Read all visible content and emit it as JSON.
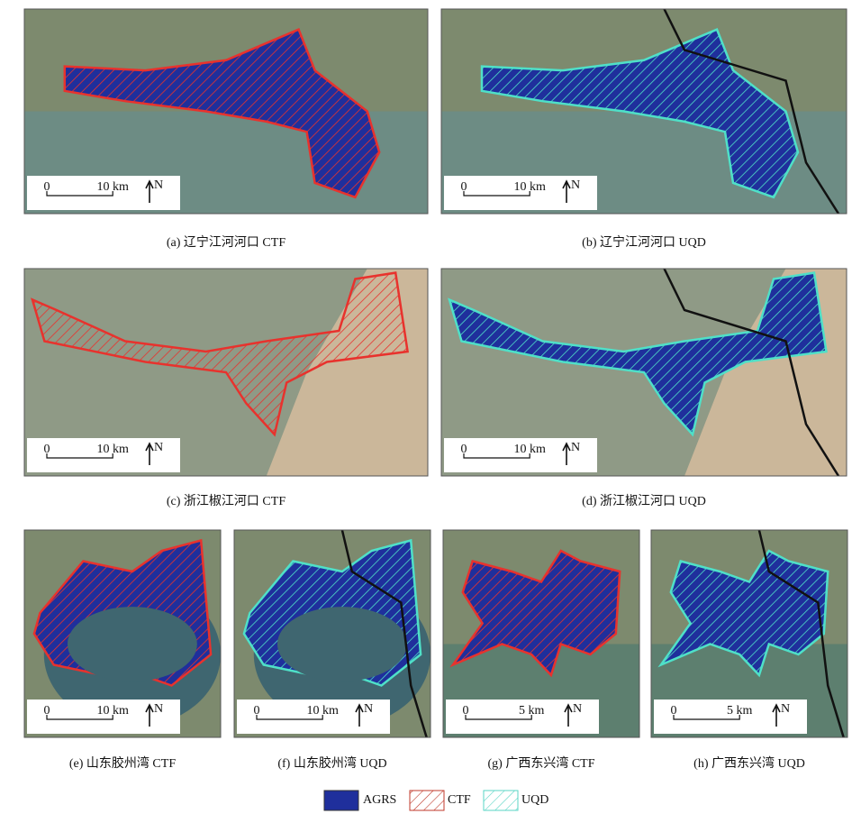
{
  "panels": [
    {
      "caption": "(a) 辽宁江河河口 CTF",
      "scale_bar": {
        "start": "0",
        "end": "10 km",
        "north": "N"
      }
    },
    {
      "caption": "(b) 辽宁江河河口 UQD",
      "scale_bar": {
        "start": "0",
        "end": "10 km",
        "north": "N"
      }
    },
    {
      "caption": "(c) 浙江椒江河口 CTF",
      "scale_bar": {
        "start": "0",
        "end": "10 km",
        "north": "N"
      }
    },
    {
      "caption": "(d) 浙江椒江河口 UQD",
      "scale_bar": {
        "start": "0",
        "end": "10 km",
        "north": "N"
      }
    },
    {
      "caption": "(e) 山东胶州湾 CTF",
      "scale_bar": {
        "start": "0",
        "end": "10 km",
        "north": "N"
      }
    },
    {
      "caption": "(f) 山东胶州湾 UQD",
      "scale_bar": {
        "start": "0",
        "end": "10 km",
        "north": "N"
      }
    },
    {
      "caption": "(g) 广西东兴湾 CTF",
      "scale_bar": {
        "start": "0",
        "end": "5 km",
        "north": "N"
      }
    },
    {
      "caption": "(h) 广西东兴湾 UQD",
      "scale_bar": {
        "start": "0",
        "end": "5 km",
        "north": "N"
      }
    }
  ],
  "legend": [
    "AGRS",
    "CTF",
    "UQD"
  ]
}
